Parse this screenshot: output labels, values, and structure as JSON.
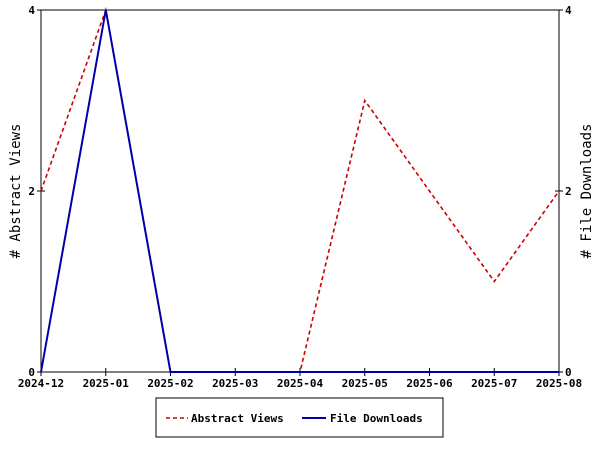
{
  "chart_data": {
    "type": "line",
    "categories": [
      "2024-12",
      "2025-01",
      "2025-02",
      "2025-03",
      "2025-04",
      "2025-05",
      "2025-06",
      "2025-07",
      "2025-08"
    ],
    "y_left": {
      "label": "# Abstract Views",
      "range": [
        0,
        4
      ],
      "ticks": [
        0,
        2,
        4
      ]
    },
    "y_right": {
      "label": "# File Downloads",
      "range": [
        0,
        4
      ],
      "ticks": [
        0,
        2,
        4
      ]
    },
    "series": [
      {
        "name": "Abstract Views",
        "axis": "left",
        "color": "#cc0000",
        "dashed": true,
        "values": [
          2,
          4,
          0,
          0,
          0,
          3,
          2,
          1,
          2
        ]
      },
      {
        "name": "File Downloads",
        "axis": "right",
        "color": "#0000aa",
        "dashed": false,
        "values": [
          0,
          4,
          0,
          0,
          0,
          0,
          0,
          0,
          0
        ]
      }
    ],
    "grid": false,
    "legend_position": "bottom-center"
  }
}
